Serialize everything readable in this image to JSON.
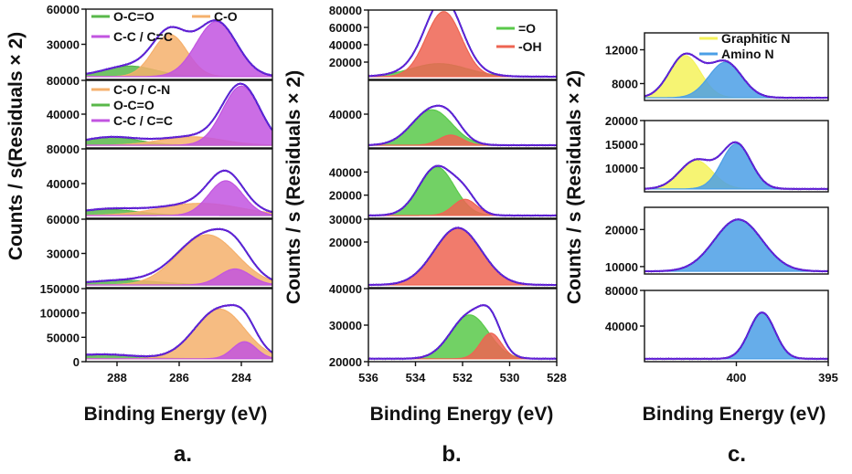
{
  "chart_data": [
    {
      "id": "a",
      "type": "area",
      "letter": "a.",
      "xlabel": "Binding Energy (eV)",
      "ylabel": "Counts / s(Residuals × 2)",
      "xlim": [
        289,
        283
      ],
      "xticks": [
        288,
        286,
        284
      ],
      "subplots": [
        {
          "ylim": [
            0,
            60000
          ],
          "yticks": [
            30000,
            60000
          ],
          "legend": [
            "O-C=O",
            "C-O",
            "C-C / C=C"
          ],
          "legend_colors": [
            "#59b84a",
            "#f5b06c",
            "#c254e0"
          ],
          "peaks": [
            {
              "name": "O-C=O",
              "color": "#59b84a",
              "center": 287.6,
              "height": 9000,
              "sigma": 0.85
            },
            {
              "name": "C-O",
              "color": "#f5b06c",
              "center": 286.3,
              "height": 36000,
              "sigma": 0.55
            },
            {
              "name": "C-C / C=C",
              "color": "#c254e0",
              "center": 284.8,
              "height": 47000,
              "sigma": 0.65
            }
          ]
        },
        {
          "ylim": [
            0,
            80000
          ],
          "yticks": [
            40000,
            80000
          ],
          "legend": [
            "C-O / C-N",
            "O-C=O",
            "C-C / C=C"
          ],
          "legend_colors": [
            "#f5b06c",
            "#59b84a",
            "#c254e0"
          ],
          "peaks": [
            {
              "name": "O-C=O",
              "color": "#59b84a",
              "center": 288.2,
              "height": 9500,
              "sigma": 0.9
            },
            {
              "name": "C-O / C-N",
              "color": "#f5b06c",
              "center": 285.6,
              "height": 10000,
              "sigma": 1.0
            },
            {
              "name": "C-C / C=C",
              "color": "#c254e0",
              "center": 284.0,
              "height": 70000,
              "sigma": 0.6
            }
          ]
        },
        {
          "ylim": [
            0,
            80000
          ],
          "yticks": [
            40000,
            80000
          ],
          "legend": [],
          "legend_colors": [],
          "peaks": [
            {
              "name": "O-C=O",
              "color": "#59b84a",
              "center": 288.3,
              "height": 7000,
              "sigma": 1.0
            },
            {
              "name": "C-O",
              "color": "#f5b06c",
              "center": 285.3,
              "height": 14000,
              "sigma": 1.3
            },
            {
              "name": "C-C / C=C",
              "color": "#c254e0",
              "center": 284.5,
              "height": 40000,
              "sigma": 0.55
            }
          ]
        },
        {
          "ylim": [
            0,
            60000
          ],
          "yticks": [
            30000,
            60000
          ],
          "legend": [],
          "legend_colors": [],
          "peaks": [
            {
              "name": "O-C=O",
              "color": "#59b84a",
              "center": 287.8,
              "height": 4000,
              "sigma": 1.2
            },
            {
              "name": "C-O",
              "color": "#f5b06c",
              "center": 285.1,
              "height": 44000,
              "sigma": 0.95
            },
            {
              "name": "C-C / C=C",
              "color": "#c254e0",
              "center": 284.2,
              "height": 14000,
              "sigma": 0.5
            }
          ]
        },
        {
          "ylim": [
            0,
            150000
          ],
          "yticks": [
            0,
            50000,
            100000,
            150000
          ],
          "legend": [],
          "legend_colors": [],
          "peaks": [
            {
              "name": "O-C=O",
              "color": "#59b84a",
              "center": 288.5,
              "height": 9000,
              "sigma": 1.1
            },
            {
              "name": "C-O",
              "color": "#f5b06c",
              "center": 284.7,
              "height": 102000,
              "sigma": 0.8
            },
            {
              "name": "C-C / C=C",
              "color": "#c254e0",
              "center": 283.9,
              "height": 35000,
              "sigma": 0.38
            }
          ]
        }
      ]
    },
    {
      "id": "b",
      "type": "area",
      "letter": "b.",
      "xlabel": "Binding Energy (eV)",
      "ylabel": "Counts / s  (Residuals × 2)",
      "xlim": [
        536,
        528
      ],
      "xticks": [
        536,
        534,
        532,
        530,
        528
      ],
      "subplots": [
        {
          "ylim": [
            0,
            80000
          ],
          "yticks": [
            20000,
            40000,
            60000,
            80000
          ],
          "legend": [
            "=O",
            "-OH"
          ],
          "legend_colors": [
            "#59c94a",
            "#ee6452"
          ],
          "peaks": [
            {
              "name": "=O",
              "color": "#59c94a",
              "center": 533.0,
              "height": 15000,
              "sigma": 1.2
            },
            {
              "name": "-OH",
              "color": "#ee6452",
              "center": 532.8,
              "height": 75000,
              "sigma": 0.75
            }
          ]
        },
        {
          "ylim": [
            0,
            80000
          ],
          "yticks": [
            40000
          ],
          "legend": [],
          "legend_colors": [],
          "peaks": [
            {
              "name": "=O",
              "color": "#59c94a",
              "center": 533.3,
              "height": 42000,
              "sigma": 0.85
            },
            {
              "name": "-OH",
              "color": "#ee6452",
              "center": 532.5,
              "height": 12000,
              "sigma": 0.5
            }
          ]
        },
        {
          "ylim": [
            0,
            60000
          ],
          "yticks": [
            20000,
            40000
          ],
          "legend": [],
          "legend_colors": [],
          "peaks": [
            {
              "name": "=O",
              "color": "#59c94a",
              "center": 533.1,
              "height": 42000,
              "sigma": 0.75
            },
            {
              "name": "-OH",
              "color": "#ee6452",
              "center": 531.9,
              "height": 14000,
              "sigma": 0.5
            }
          ]
        },
        {
          "ylim": [
            0,
            30000
          ],
          "yticks": [
            20000,
            30000
          ],
          "legend": [],
          "legend_colors": [],
          "peaks": [
            {
              "name": "-OH",
              "color": "#ee6452",
              "center": 532.2,
              "height": 25000,
              "sigma": 1.0
            }
          ]
        },
        {
          "ylim": [
            20000,
            40000
          ],
          "yticks": [
            20000,
            30000,
            40000
          ],
          "legend": [],
          "legend_colors": [],
          "peaks": [
            {
              "name": "=O",
              "color": "#59c94a",
              "center": 531.7,
              "height": 12000,
              "sigma": 0.8
            },
            {
              "name": "-OH",
              "color": "#ee6452",
              "center": 530.8,
              "height": 7000,
              "sigma": 0.45
            }
          ]
        }
      ]
    },
    {
      "id": "c",
      "type": "area",
      "letter": "c.",
      "xlabel": "Binding Energy (eV)",
      "ylabel": "Counts / s  (Residuals × 2)",
      "xlim": [
        405,
        395
      ],
      "xticks": [
        400,
        395
      ],
      "subplots": [
        {
          "ylim": [
            6000,
            14000
          ],
          "yticks": [
            8000,
            12000
          ],
          "legend": [
            "Graphitic N",
            "Amino N"
          ],
          "legend_colors": [
            "#f4f25a",
            "#4b9fe6"
          ],
          "peaks": [
            {
              "name": "Graphitic N",
              "color": "#f4f25a",
              "center": 402.8,
              "height": 5000,
              "sigma": 0.85
            },
            {
              "name": "Amino N",
              "color": "#4b9fe6",
              "center": 400.6,
              "height": 4200,
              "sigma": 0.9
            }
          ]
        },
        {
          "ylim": [
            5000,
            20000
          ],
          "yticks": [
            10000,
            15000,
            20000
          ],
          "legend": [],
          "legend_colors": [],
          "peaks": [
            {
              "name": "Graphitic N",
              "color": "#f4f25a",
              "center": 402.2,
              "height": 6000,
              "sigma": 0.9
            },
            {
              "name": "Amino N",
              "color": "#4b9fe6",
              "center": 400.0,
              "height": 9500,
              "sigma": 0.8
            }
          ]
        },
        {
          "ylim": [
            8000,
            26000
          ],
          "yticks": [
            10000,
            20000
          ],
          "legend": [],
          "legend_colors": [],
          "peaks": [
            {
              "name": "Amino N",
              "color": "#4b9fe6",
              "center": 399.9,
              "height": 14000,
              "sigma": 1.3
            }
          ]
        },
        {
          "ylim": [
            0,
            80000
          ],
          "yticks": [
            40000,
            80000
          ],
          "legend": [],
          "legend_colors": [],
          "peaks": [
            {
              "name": "Amino N",
              "color": "#4b9fe6",
              "center": 398.6,
              "height": 52000,
              "sigma": 0.7
            }
          ]
        }
      ]
    }
  ]
}
